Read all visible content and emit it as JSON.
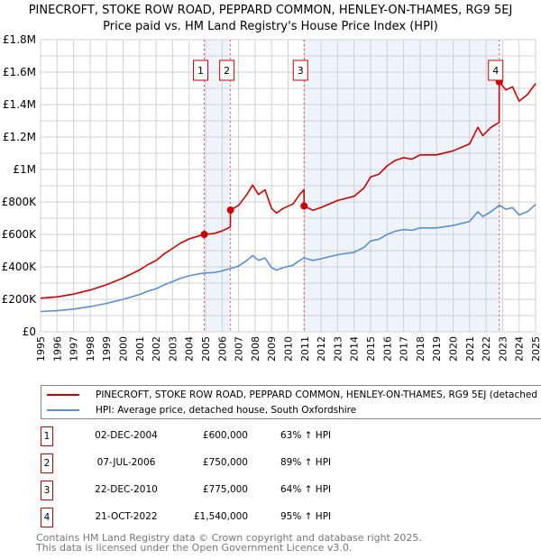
{
  "chart_data": {
    "type": "line",
    "title": "PINECROFT, STOKE ROW ROAD, PEPPARD COMMON, HENLEY-ON-THAMES, RG9 5EJ",
    "subtitle": "Price paid vs. HM Land Registry's House Price Index (HPI)",
    "xlim": [
      1995,
      2025
    ],
    "ylim": [
      0,
      1800000
    ],
    "x_ticks": [
      "1995",
      "1996",
      "1997",
      "1998",
      "1999",
      "2000",
      "2001",
      "2002",
      "2003",
      "2004",
      "2005",
      "2006",
      "2007",
      "2008",
      "2009",
      "2010",
      "2011",
      "2012",
      "2013",
      "2014",
      "2015",
      "2016",
      "2017",
      "2018",
      "2019",
      "2020",
      "2021",
      "2022",
      "2023",
      "2024",
      "2025"
    ],
    "y_ticks": [
      {
        "v": 0,
        "label": "£0"
      },
      {
        "v": 200000,
        "label": "£200K"
      },
      {
        "v": 400000,
        "label": "£400K"
      },
      {
        "v": 600000,
        "label": "£600K"
      },
      {
        "v": 800000,
        "label": "£800K"
      },
      {
        "v": 1000000,
        "label": "£1M"
      },
      {
        "v": 1200000,
        "label": "£1.2M"
      },
      {
        "v": 1400000,
        "label": "£1.4M"
      },
      {
        "v": 1600000,
        "label": "£1.6M"
      },
      {
        "v": 1800000,
        "label": "£1.8M"
      }
    ],
    "grid": true,
    "colors": {
      "property": "#cc0000",
      "hpi": "#5b8fd0",
      "shade": "#eef3fc",
      "sale_line": "#e05050"
    },
    "series": [
      {
        "name": "PINECROFT, STOKE ROW ROAD, PEPPARD COMMON, HENLEY-ON-THAMES, RG9 5EJ (detached house)",
        "points": [
          [
            1995,
            207000
          ],
          [
            1996,
            215000
          ],
          [
            1997,
            232000
          ],
          [
            1998,
            257000
          ],
          [
            1999,
            290000
          ],
          [
            2000,
            331000
          ],
          [
            2001,
            381000
          ],
          [
            2001.5,
            414000
          ],
          [
            2002,
            439000
          ],
          [
            2002.5,
            481000
          ],
          [
            2003,
            514000
          ],
          [
            2003.5,
            547000
          ],
          [
            2004,
            572000
          ],
          [
            2004.5,
            588000
          ],
          [
            2004.92,
            600000
          ],
          [
            2005.5,
            605000
          ],
          [
            2006,
            621000
          ],
          [
            2006.5,
            646000
          ],
          [
            2006.51,
            750000
          ],
          [
            2007,
            779000
          ],
          [
            2007.5,
            846000
          ],
          [
            2007.85,
            904000
          ],
          [
            2008.2,
            846000
          ],
          [
            2008.6,
            875000
          ],
          [
            2009,
            760000
          ],
          [
            2009.3,
            731000
          ],
          [
            2009.7,
            760000
          ],
          [
            2010.3,
            788000
          ],
          [
            2010.7,
            846000
          ],
          [
            2010.96,
            875000
          ],
          [
            2010.97,
            775000
          ],
          [
            2011.5,
            749000
          ],
          [
            2012,
            766000
          ],
          [
            2013,
            809000
          ],
          [
            2014,
            835000
          ],
          [
            2014.6,
            886000
          ],
          [
            2015,
            954000
          ],
          [
            2015.5,
            971000
          ],
          [
            2016,
            1022000
          ],
          [
            2016.5,
            1056000
          ],
          [
            2017,
            1073000
          ],
          [
            2017.5,
            1064000
          ],
          [
            2018,
            1090000
          ],
          [
            2019,
            1090000
          ],
          [
            2020,
            1115000
          ],
          [
            2021,
            1158000
          ],
          [
            2021.5,
            1260000
          ],
          [
            2021.8,
            1209000
          ],
          [
            2022.3,
            1260000
          ],
          [
            2022.79,
            1290000
          ],
          [
            2022.8,
            1540000
          ],
          [
            2023.2,
            1490000
          ],
          [
            2023.6,
            1510000
          ],
          [
            2024,
            1421000
          ],
          [
            2024.5,
            1461000
          ],
          [
            2025,
            1530000
          ]
        ]
      },
      {
        "name": "HPI: Average price, detached house, South Oxfordshire",
        "points": [
          [
            1995,
            125000
          ],
          [
            1996,
            130000
          ],
          [
            1997,
            140000
          ],
          [
            1998,
            155000
          ],
          [
            1999,
            175000
          ],
          [
            2000,
            200000
          ],
          [
            2001,
            230000
          ],
          [
            2001.5,
            250000
          ],
          [
            2002,
            265000
          ],
          [
            2002.5,
            290000
          ],
          [
            2003,
            310000
          ],
          [
            2003.5,
            330000
          ],
          [
            2004,
            345000
          ],
          [
            2004.5,
            355000
          ],
          [
            2004.92,
            362000
          ],
          [
            2005.5,
            365000
          ],
          [
            2006,
            375000
          ],
          [
            2006.51,
            390000
          ],
          [
            2007,
            405000
          ],
          [
            2007.5,
            440000
          ],
          [
            2007.85,
            470000
          ],
          [
            2008.2,
            440000
          ],
          [
            2008.6,
            455000
          ],
          [
            2009,
            395000
          ],
          [
            2009.3,
            380000
          ],
          [
            2009.7,
            395000
          ],
          [
            2010.3,
            410000
          ],
          [
            2010.7,
            440000
          ],
          [
            2010.97,
            455000
          ],
          [
            2011.5,
            440000
          ],
          [
            2012,
            450000
          ],
          [
            2013,
            475000
          ],
          [
            2014,
            490000
          ],
          [
            2014.6,
            520000
          ],
          [
            2015,
            560000
          ],
          [
            2015.5,
            570000
          ],
          [
            2016,
            600000
          ],
          [
            2016.5,
            620000
          ],
          [
            2017,
            630000
          ],
          [
            2017.5,
            625000
          ],
          [
            2018,
            640000
          ],
          [
            2019,
            640000
          ],
          [
            2020,
            655000
          ],
          [
            2021,
            680000
          ],
          [
            2021.5,
            740000
          ],
          [
            2021.8,
            710000
          ],
          [
            2022.3,
            740000
          ],
          [
            2022.8,
            780000
          ],
          [
            2023.2,
            755000
          ],
          [
            2023.6,
            765000
          ],
          [
            2024,
            720000
          ],
          [
            2024.5,
            740000
          ],
          [
            2025,
            785000
          ]
        ]
      }
    ],
    "sales": [
      {
        "num": "1",
        "x": 2004.92,
        "date": "02-DEC-2004",
        "price": 600000,
        "price_label": "£600,000",
        "hpi": "63% ↑ HPI"
      },
      {
        "num": "2",
        "x": 2006.51,
        "date": "07-JUL-2006",
        "price": 750000,
        "price_label": "£750,000",
        "hpi": "89% ↑ HPI"
      },
      {
        "num": "3",
        "x": 2010.97,
        "date": "22-DEC-2010",
        "price": 775000,
        "price_label": "£775,000",
        "hpi": "64% ↑ HPI"
      },
      {
        "num": "4",
        "x": 2022.8,
        "date": "21-OCT-2022",
        "price": 1540000,
        "price_label": "£1,540,000",
        "hpi": "95% ↑ HPI"
      }
    ],
    "shaded_ranges": [
      [
        2004.92,
        2006.51
      ],
      [
        2010.97,
        2022.8
      ]
    ],
    "legend_position": "bottom"
  },
  "legend": {
    "property": "PINECROFT, STOKE ROW ROAD, PEPPARD COMMON, HENLEY-ON-THAMES, RG9 5EJ (detached house)",
    "hpi": "HPI: Average price, detached house, South Oxfordshire"
  },
  "footer": {
    "line1": "Contains HM Land Registry data © Crown copyright and database right 2025.",
    "line2": "This data is licensed under the Open Government Licence v3.0."
  }
}
